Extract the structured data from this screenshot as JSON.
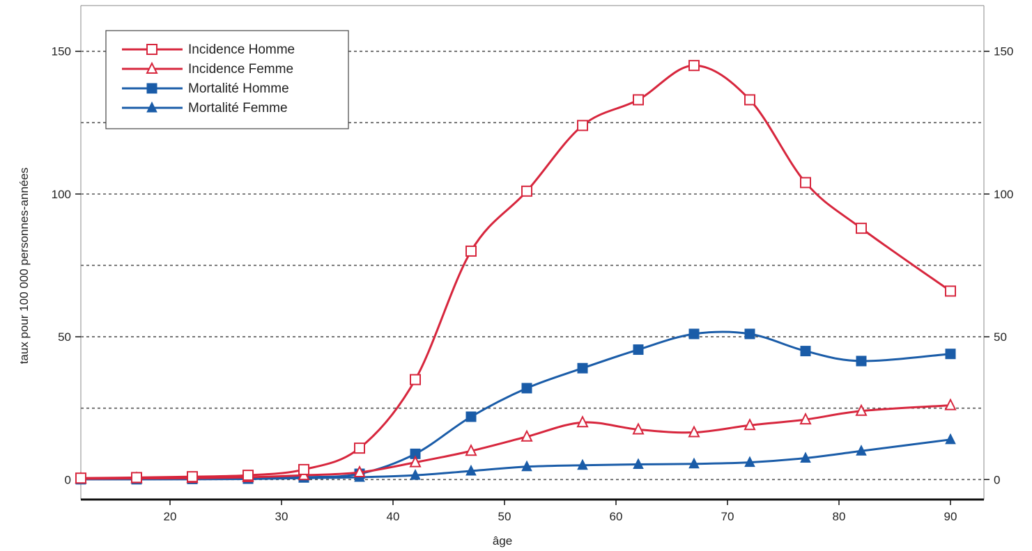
{
  "chart_data": {
    "type": "line",
    "xlabel": "âge",
    "ylabel": "taux pour 100 000 personnes-années",
    "xlim": [
      12,
      93
    ],
    "ylim": [
      -7,
      166
    ],
    "x_ticks": [
      20,
      30,
      40,
      50,
      60,
      70,
      80,
      90
    ],
    "y_ticks": [
      0,
      50,
      100,
      150
    ],
    "y_gridlines": [
      0,
      25,
      50,
      75,
      100,
      125,
      150
    ],
    "grid": "horizontal dashed",
    "legend_position": "top-left",
    "x": [
      12,
      17,
      22,
      27,
      32,
      37,
      42,
      47,
      52,
      57,
      62,
      67,
      72,
      77,
      82,
      90
    ],
    "series": [
      {
        "name": "Incidence Homme",
        "color": "#d7263d",
        "marker": "open-square",
        "values": [
          0.5,
          0.7,
          1,
          1.5,
          3.5,
          11,
          35,
          80,
          101,
          124,
          133,
          145,
          133,
          104,
          88,
          66
        ]
      },
      {
        "name": "Incidence Femme",
        "color": "#d7263d",
        "marker": "open-triangle",
        "values": [
          0.3,
          0.4,
          0.5,
          0.8,
          1.5,
          2.5,
          6,
          10,
          15,
          20,
          17.5,
          16.5,
          19,
          21,
          24,
          26
        ]
      },
      {
        "name": "Mortalité Homme",
        "color": "#1a5ca8",
        "marker": "filled-square",
        "values": [
          0.1,
          0.1,
          0.2,
          0.3,
          0.8,
          2,
          9,
          22,
          32,
          39,
          45.5,
          51,
          51,
          45,
          41.5,
          44
        ]
      },
      {
        "name": "Mortalité Femme",
        "color": "#1a5ca8",
        "marker": "filled-triangle",
        "values": [
          0.1,
          0.1,
          0.1,
          0.2,
          0.5,
          0.8,
          1.5,
          3,
          4.5,
          5,
          5.3,
          5.5,
          6,
          7.5,
          10,
          14
        ]
      }
    ]
  }
}
